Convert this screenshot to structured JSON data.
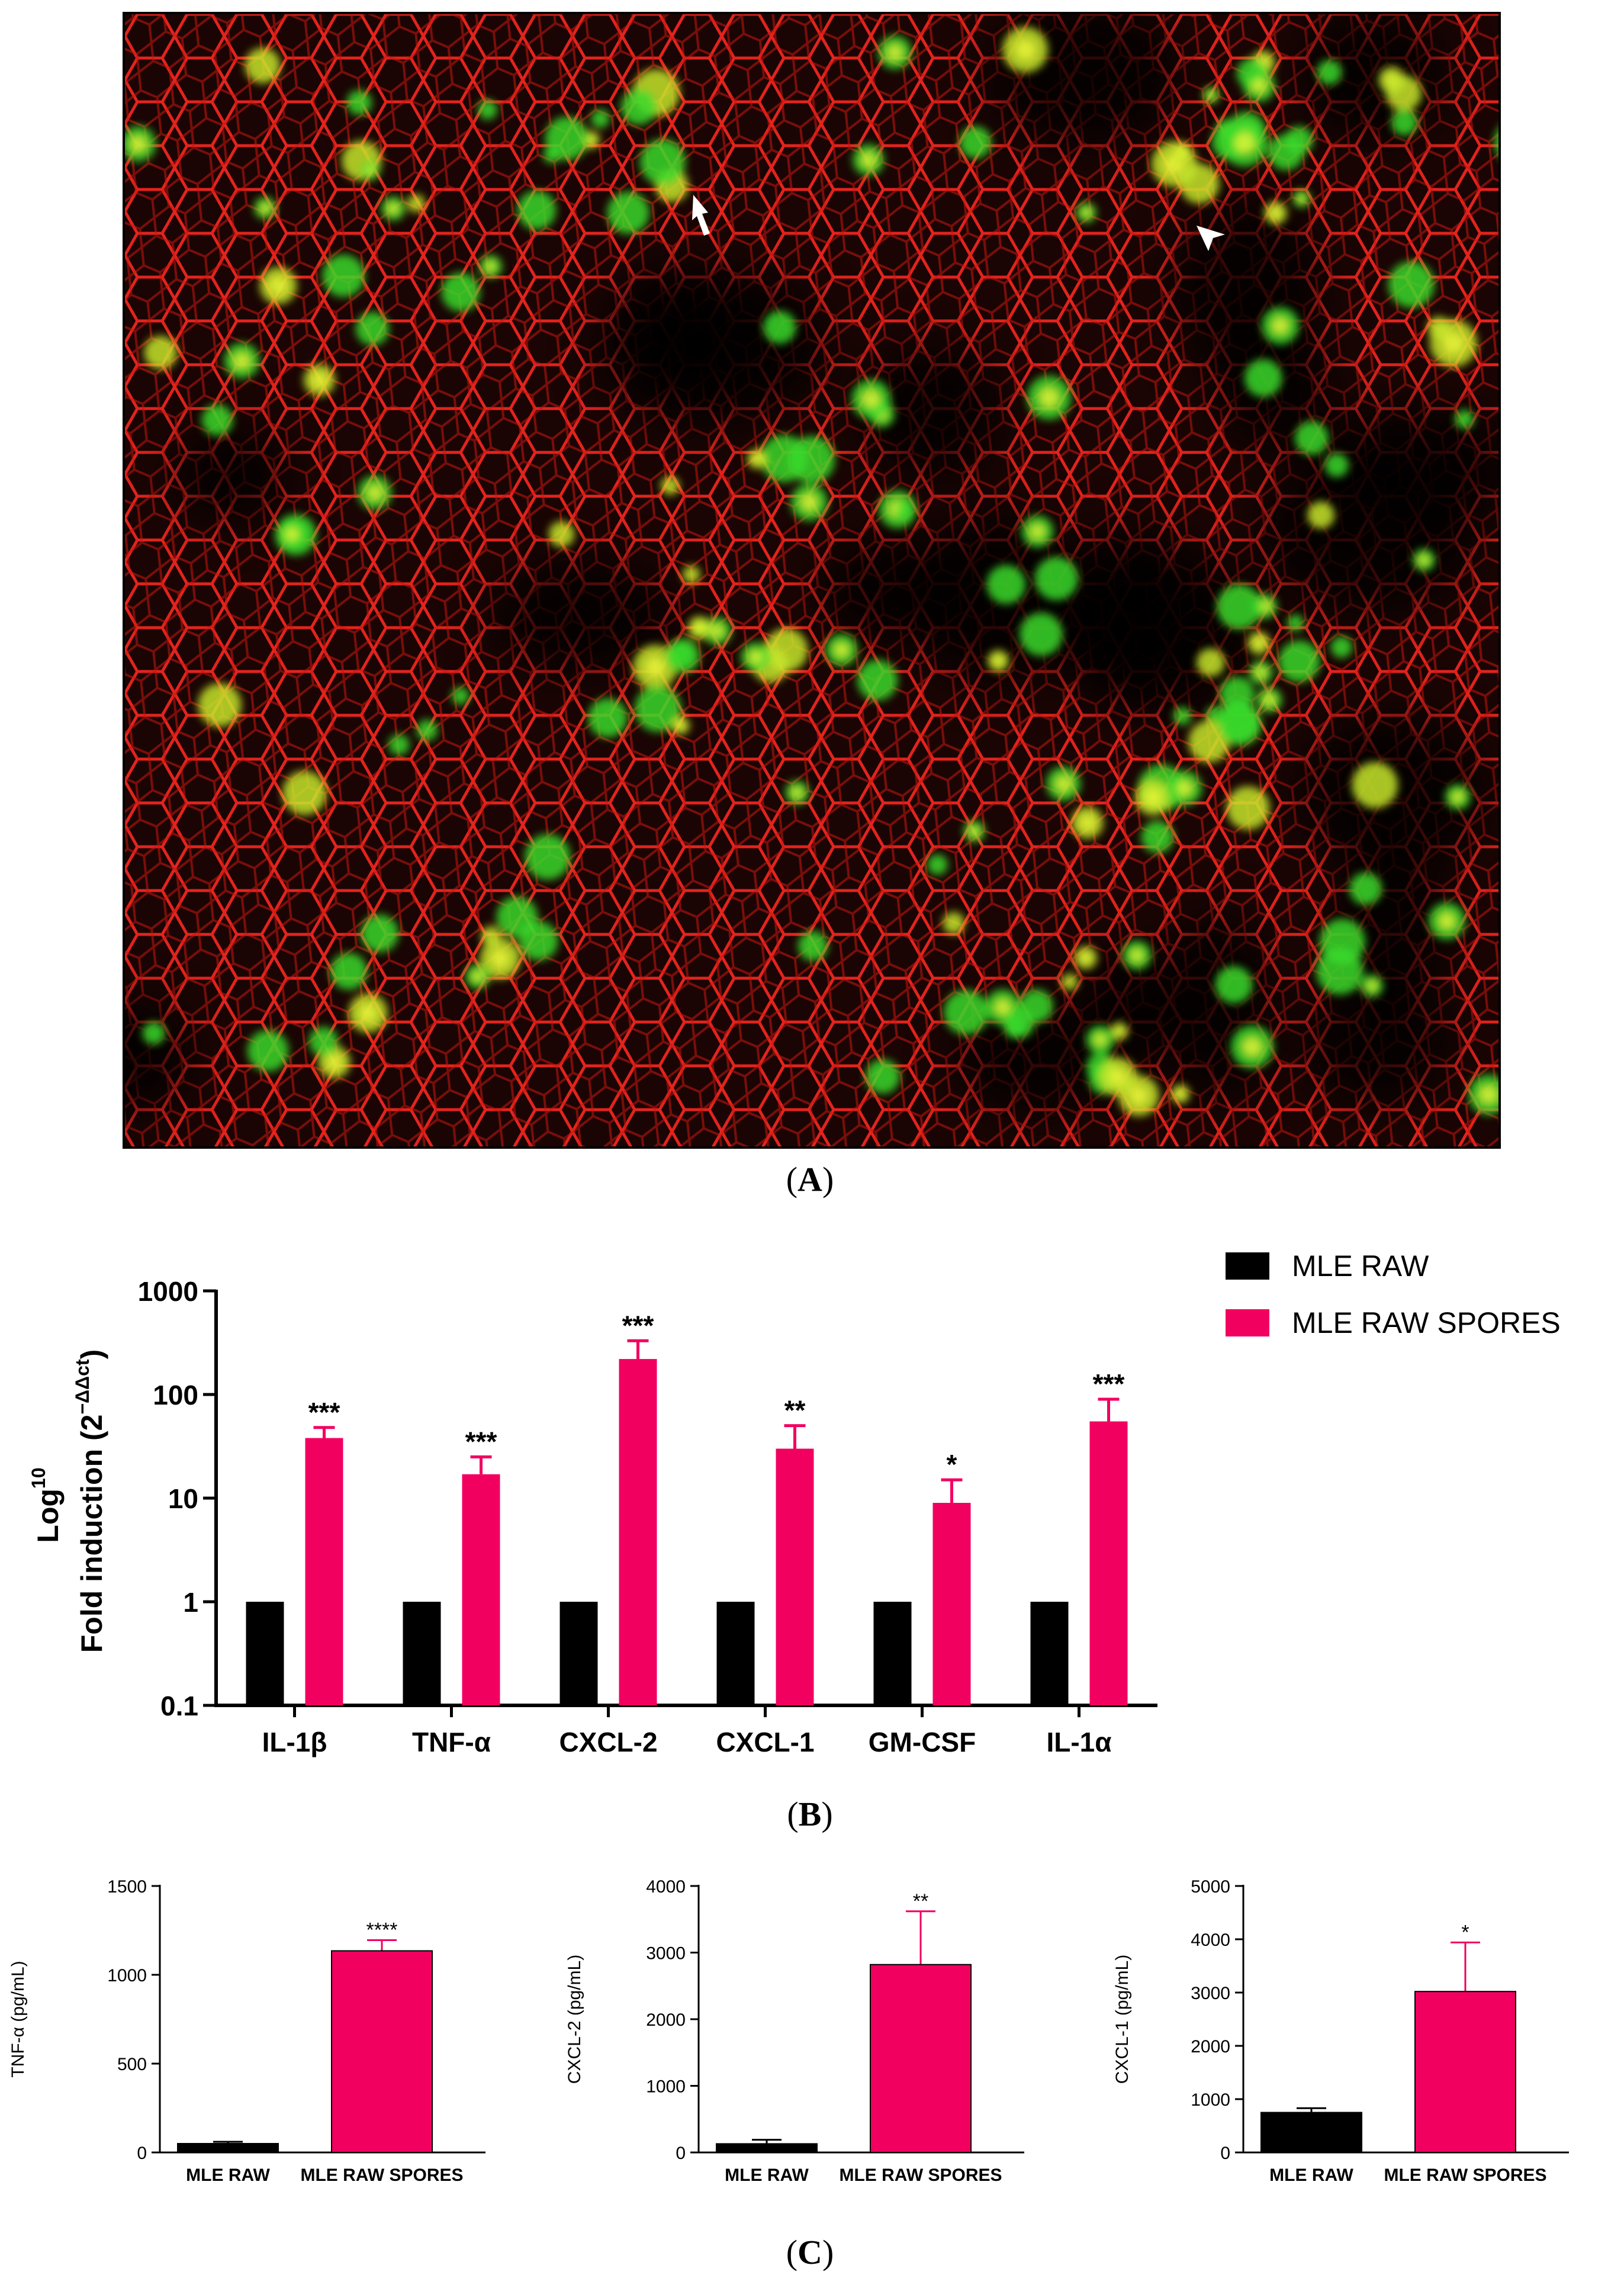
{
  "colors": {
    "control": "#000000",
    "spores": "#f20060",
    "membrane": "#e5211c",
    "spore_stain": "#38e02e"
  },
  "panel_labels": {
    "a": "A",
    "b": "B",
    "c": "C"
  },
  "microscopy_markers": [
    "arrow",
    "arrowhead"
  ],
  "legend": [
    {
      "label": "MLE RAW",
      "color": "#000000"
    },
    {
      "label": "MLE RAW SPORES",
      "color": "#f20060"
    }
  ],
  "chart_data": [
    {
      "type": "bar",
      "scale": "log",
      "ylabel_base": "Log",
      "ylabel_sup": "10",
      "ylabel_line2": "Fold induction (2",
      "ylabel_exp": "−ΔΔct",
      "ylabel_close": ")",
      "ylim": [
        0.1,
        1000
      ],
      "yticks": [
        "0.1",
        "1",
        "10",
        "100",
        "1000"
      ],
      "categories": [
        "IL-1β",
        "TNF-α",
        "CXCL-2",
        "CXCL-1",
        "GM-CSF",
        "IL-1α"
      ],
      "series": [
        {
          "name": "MLE RAW",
          "color": "#000000",
          "values": [
            1,
            1,
            1,
            1,
            1,
            1
          ]
        },
        {
          "name": "MLE RAW SPORES",
          "color": "#f20060",
          "values": [
            38,
            17,
            220,
            30,
            9,
            55
          ],
          "err_upper": [
            48,
            25,
            330,
            50,
            15,
            90
          ]
        }
      ],
      "significance": [
        "***",
        "***",
        "***",
        "**",
        "*",
        "***"
      ]
    },
    {
      "type": "bar",
      "ylabel": "TNF-α (pg/mL)",
      "ylim": [
        0,
        1500
      ],
      "yticks": [
        "0",
        "500",
        "1000",
        "1500"
      ],
      "categories": [
        "MLE RAW",
        "MLE RAW SPORES"
      ],
      "values": [
        50,
        1135
      ],
      "err_upper": [
        60,
        1195
      ],
      "colors": [
        "#000000",
        "#f20060"
      ],
      "significance": [
        "",
        "****"
      ]
    },
    {
      "type": "bar",
      "ylabel": "CXCL-2 (pg/mL)",
      "ylim": [
        0,
        4000
      ],
      "yticks": [
        "0",
        "1000",
        "2000",
        "3000",
        "4000"
      ],
      "categories": [
        "MLE RAW",
        "MLE RAW SPORES"
      ],
      "values": [
        130,
        2820
      ],
      "err_upper": [
        190,
        3620
      ],
      "colors": [
        "#000000",
        "#f20060"
      ],
      "significance": [
        "",
        "**"
      ]
    },
    {
      "type": "bar",
      "ylabel": "CXCL-1 (pg/mL)",
      "ylim": [
        0,
        5000
      ],
      "yticks": [
        "0",
        "1000",
        "2000",
        "3000",
        "4000",
        "5000"
      ],
      "categories": [
        "MLE RAW",
        "MLE RAW SPORES"
      ],
      "values": [
        750,
        3020
      ],
      "err_upper": [
        830,
        3940
      ],
      "colors": [
        "#000000",
        "#f20060"
      ],
      "significance": [
        "",
        "*"
      ]
    }
  ]
}
